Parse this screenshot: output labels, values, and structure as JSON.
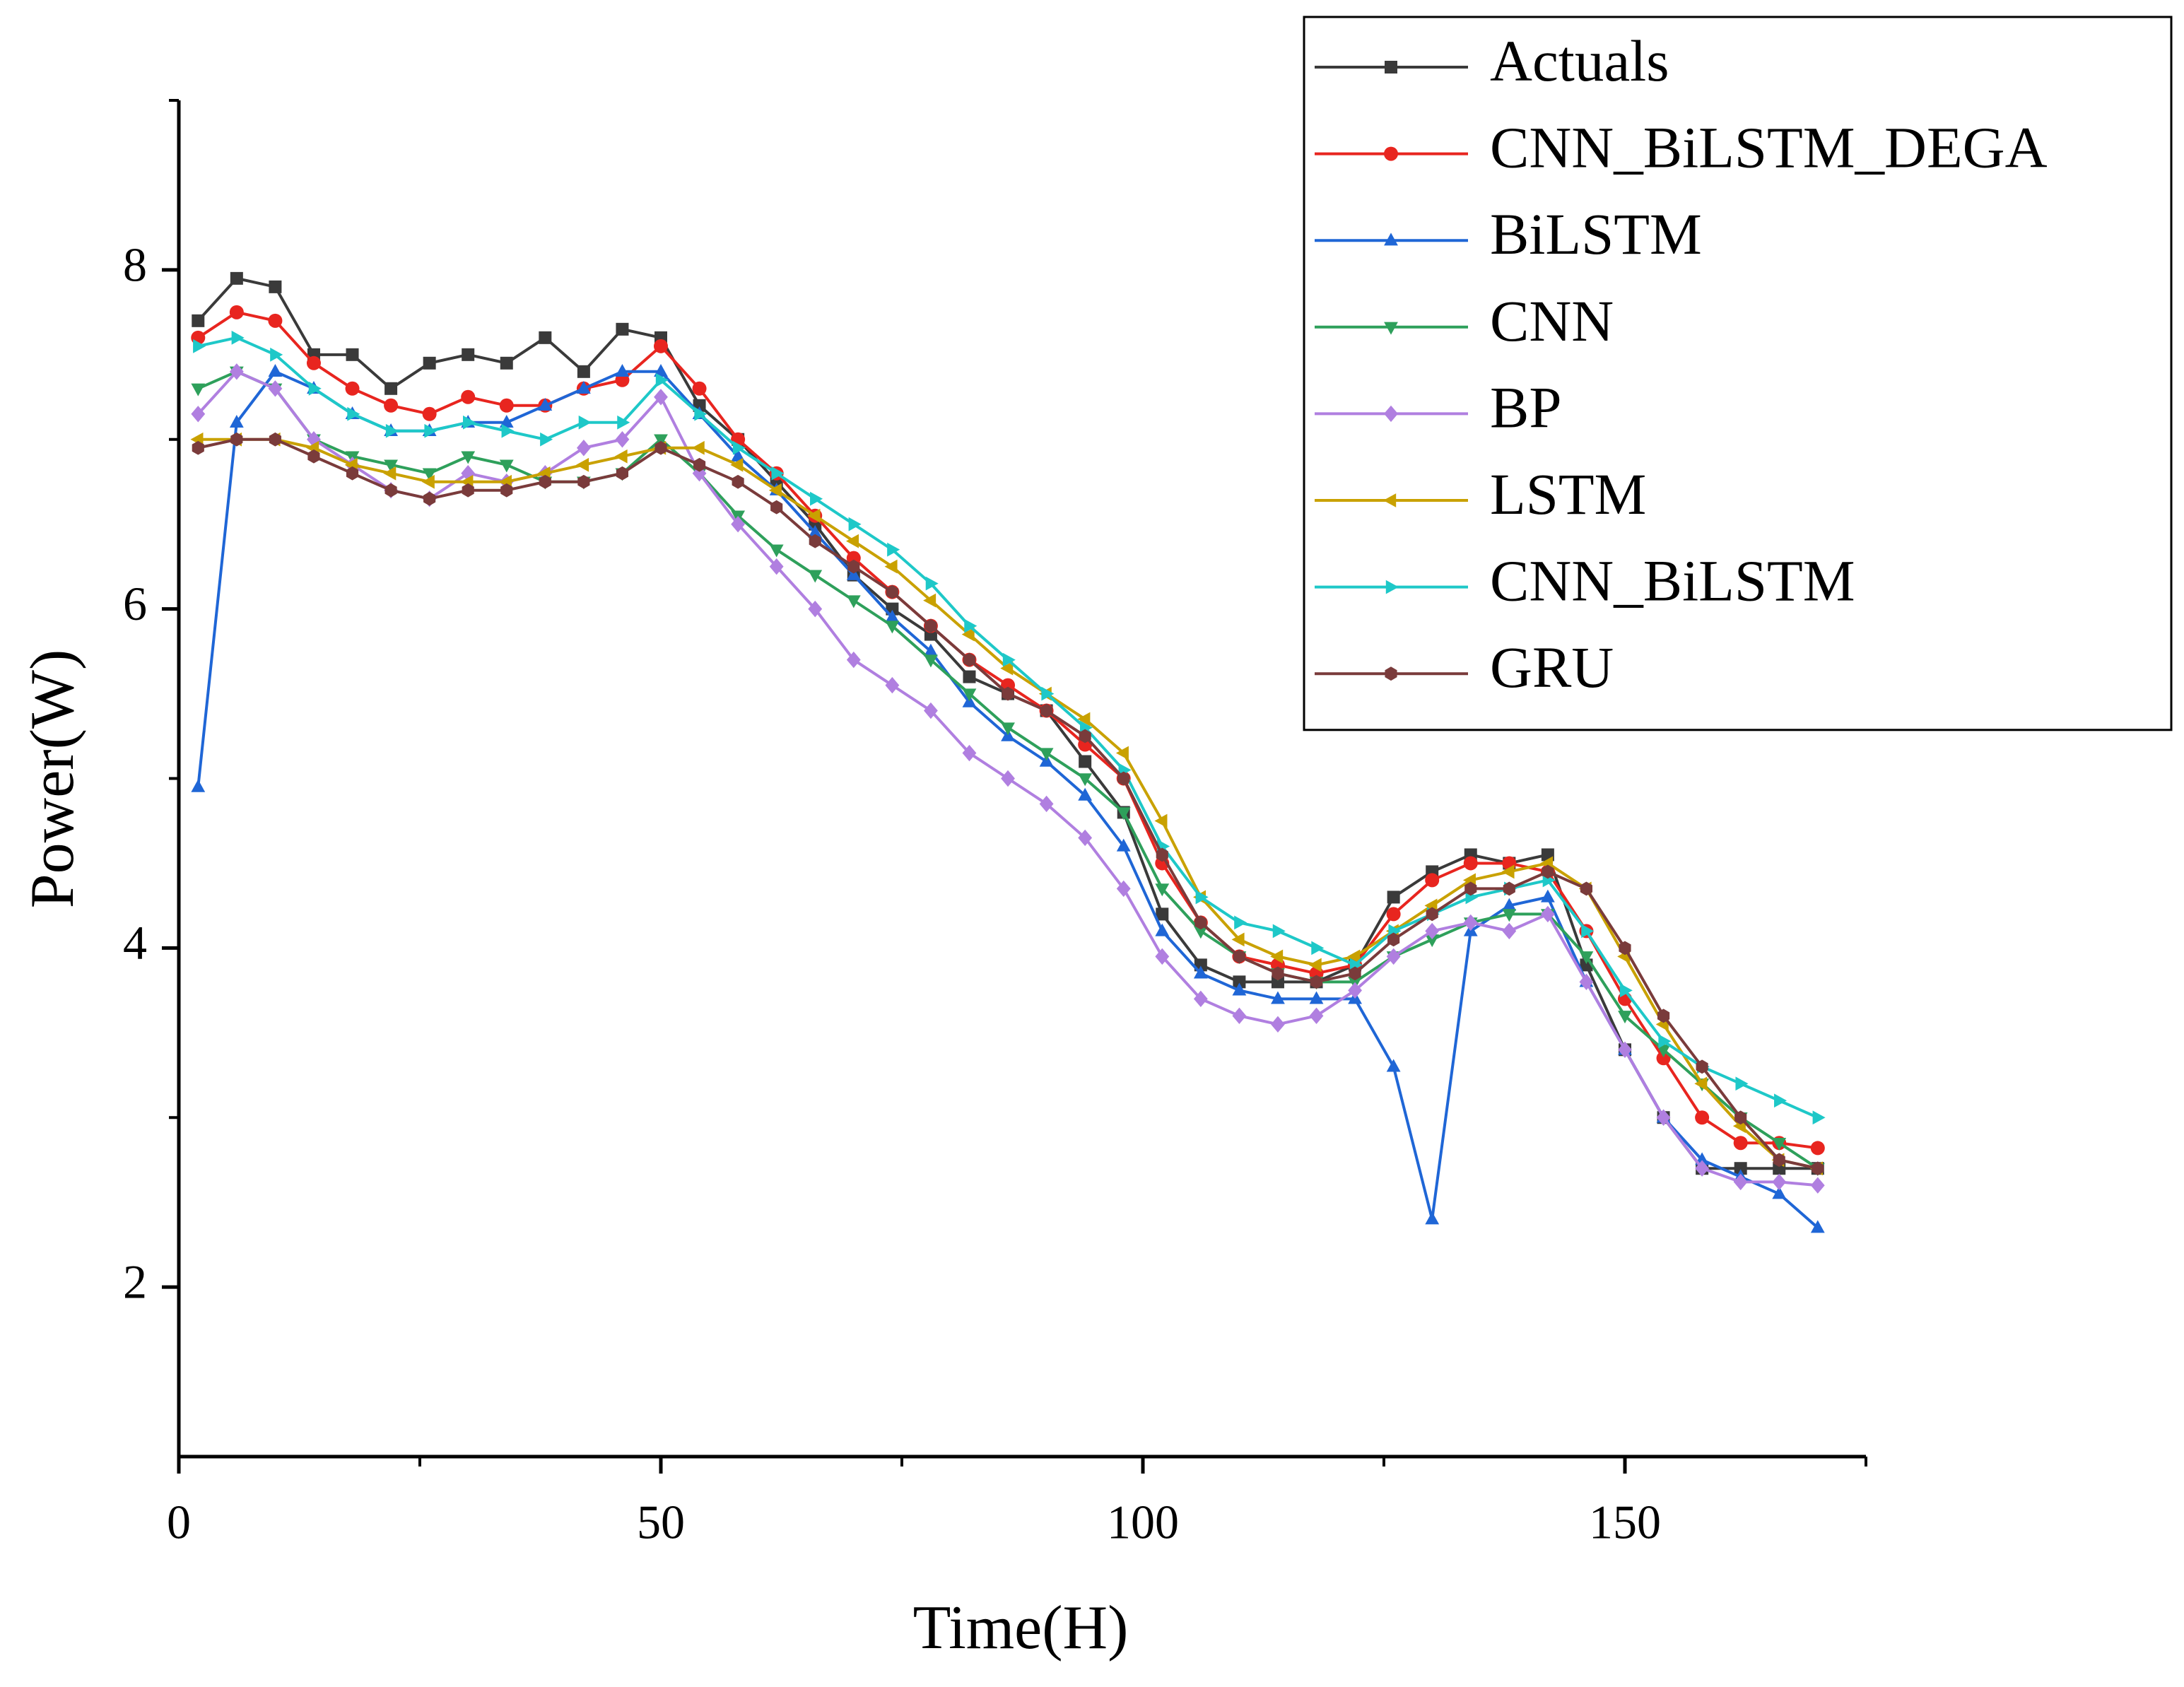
{
  "chart_data": {
    "type": "line",
    "xlabel": "Time(H)",
    "ylabel": "Power(W)",
    "x": [
      2,
      6,
      10,
      14,
      18,
      22,
      26,
      30,
      34,
      38,
      42,
      46,
      50,
      54,
      58,
      62,
      66,
      70,
      74,
      78,
      82,
      86,
      90,
      94,
      98,
      102,
      106,
      110,
      114,
      118,
      122,
      126,
      130,
      134,
      138,
      142,
      146,
      150,
      154,
      158,
      162,
      166,
      170
    ],
    "series": [
      {
        "name": "Actuals",
        "color": "#3a3a3a",
        "marker": "square",
        "values": [
          7.7,
          7.95,
          7.9,
          7.5,
          7.5,
          7.3,
          7.45,
          7.5,
          7.45,
          7.6,
          7.4,
          7.65,
          7.6,
          7.2,
          7.0,
          6.75,
          6.5,
          6.2,
          6.0,
          5.85,
          5.6,
          5.5,
          5.4,
          5.1,
          4.8,
          4.2,
          3.9,
          3.8,
          3.8,
          3.8,
          3.9,
          4.3,
          4.45,
          4.55,
          4.5,
          4.55,
          3.9,
          3.4,
          3.0,
          2.7,
          2.7,
          2.7,
          2.7
        ]
      },
      {
        "name": "CNN_BiLSTM_DEGA",
        "color": "#e8251f",
        "marker": "circle",
        "values": [
          7.6,
          7.75,
          7.7,
          7.45,
          7.3,
          7.2,
          7.15,
          7.25,
          7.2,
          7.2,
          7.3,
          7.35,
          7.55,
          7.3,
          7.0,
          6.8,
          6.55,
          6.3,
          6.1,
          5.9,
          5.7,
          5.55,
          5.4,
          5.2,
          5.0,
          4.5,
          4.15,
          3.95,
          3.9,
          3.85,
          3.9,
          4.2,
          4.4,
          4.5,
          4.5,
          4.45,
          4.1,
          3.7,
          3.35,
          3.0,
          2.85,
          2.85,
          2.82
        ]
      },
      {
        "name": "BiLSTM",
        "color": "#1f66d6",
        "marker": "triangle-up",
        "values": [
          4.95,
          7.1,
          7.4,
          7.3,
          7.15,
          7.05,
          7.05,
          7.1,
          7.1,
          7.2,
          7.3,
          7.4,
          7.4,
          7.15,
          6.9,
          6.7,
          6.45,
          6.2,
          5.95,
          5.75,
          5.45,
          5.25,
          5.1,
          4.9,
          4.6,
          4.1,
          3.85,
          3.75,
          3.7,
          3.7,
          3.7,
          3.3,
          2.4,
          4.1,
          4.25,
          4.3,
          3.8,
          3.4,
          3.0,
          2.75,
          2.65,
          2.55,
          2.35
        ]
      },
      {
        "name": "CNN",
        "color": "#2ea05b",
        "marker": "triangle-down",
        "values": [
          7.3,
          7.4,
          7.3,
          7.0,
          6.9,
          6.85,
          6.8,
          6.9,
          6.85,
          6.75,
          6.75,
          6.8,
          7.0,
          6.8,
          6.55,
          6.35,
          6.2,
          6.05,
          5.9,
          5.7,
          5.5,
          5.3,
          5.15,
          5.0,
          4.8,
          4.35,
          4.1,
          3.95,
          3.85,
          3.8,
          3.8,
          3.95,
          4.05,
          4.15,
          4.2,
          4.2,
          3.95,
          3.6,
          3.4,
          3.2,
          3.0,
          2.85,
          2.7
        ]
      },
      {
        "name": "BP",
        "color": "#b07fe0",
        "marker": "diamond",
        "values": [
          7.15,
          7.4,
          7.3,
          7.0,
          6.85,
          6.7,
          6.65,
          6.8,
          6.75,
          6.8,
          6.95,
          7.0,
          7.25,
          6.8,
          6.5,
          6.25,
          6.0,
          5.7,
          5.55,
          5.4,
          5.15,
          5.0,
          4.85,
          4.65,
          4.35,
          3.95,
          3.7,
          3.6,
          3.55,
          3.6,
          3.75,
          3.95,
          4.1,
          4.15,
          4.1,
          4.2,
          3.8,
          3.4,
          3.0,
          2.7,
          2.62,
          2.62,
          2.6
        ]
      },
      {
        "name": "LSTM",
        "color": "#c9a100",
        "marker": "triangle-left",
        "values": [
          7.0,
          7.0,
          7.0,
          6.95,
          6.85,
          6.8,
          6.75,
          6.75,
          6.75,
          6.8,
          6.85,
          6.9,
          6.95,
          6.95,
          6.85,
          6.7,
          6.55,
          6.4,
          6.25,
          6.05,
          5.85,
          5.65,
          5.5,
          5.35,
          5.15,
          4.75,
          4.3,
          4.05,
          3.95,
          3.9,
          3.95,
          4.1,
          4.25,
          4.4,
          4.45,
          4.5,
          4.35,
          3.95,
          3.55,
          3.2,
          2.95,
          2.75,
          2.7
        ]
      },
      {
        "name": "CNN_BiLSTM",
        "color": "#1ec8c8",
        "marker": "triangle-right",
        "values": [
          7.55,
          7.6,
          7.5,
          7.3,
          7.15,
          7.05,
          7.05,
          7.1,
          7.05,
          7.0,
          7.1,
          7.1,
          7.35,
          7.15,
          6.95,
          6.8,
          6.65,
          6.5,
          6.35,
          6.15,
          5.9,
          5.7,
          5.5,
          5.3,
          5.05,
          4.6,
          4.3,
          4.15,
          4.1,
          4.0,
          3.9,
          4.1,
          4.2,
          4.3,
          4.35,
          4.4,
          4.1,
          3.75,
          3.45,
          3.3,
          3.2,
          3.1,
          3.0
        ]
      },
      {
        "name": "GRU",
        "color": "#7a3b3b",
        "marker": "hexagon",
        "values": [
          6.95,
          7.0,
          7.0,
          6.9,
          6.8,
          6.7,
          6.65,
          6.7,
          6.7,
          6.75,
          6.75,
          6.8,
          6.95,
          6.85,
          6.75,
          6.6,
          6.4,
          6.25,
          6.1,
          5.9,
          5.7,
          5.5,
          5.4,
          5.25,
          5.0,
          4.55,
          4.15,
          3.95,
          3.85,
          3.8,
          3.85,
          4.05,
          4.2,
          4.35,
          4.35,
          4.45,
          4.35,
          4.0,
          3.6,
          3.3,
          3.0,
          2.75,
          2.7
        ]
      }
    ],
    "xlim": [
      0,
      175
    ],
    "xticks": [
      0,
      50,
      100,
      150
    ],
    "xminorticks": [
      25,
      75,
      125,
      175
    ],
    "ylim": [
      1,
      9
    ],
    "yticks": [
      2,
      4,
      6,
      8
    ],
    "yminorticks": [
      3,
      5,
      7,
      9
    ],
    "grid": false,
    "legend": "upper right"
  }
}
